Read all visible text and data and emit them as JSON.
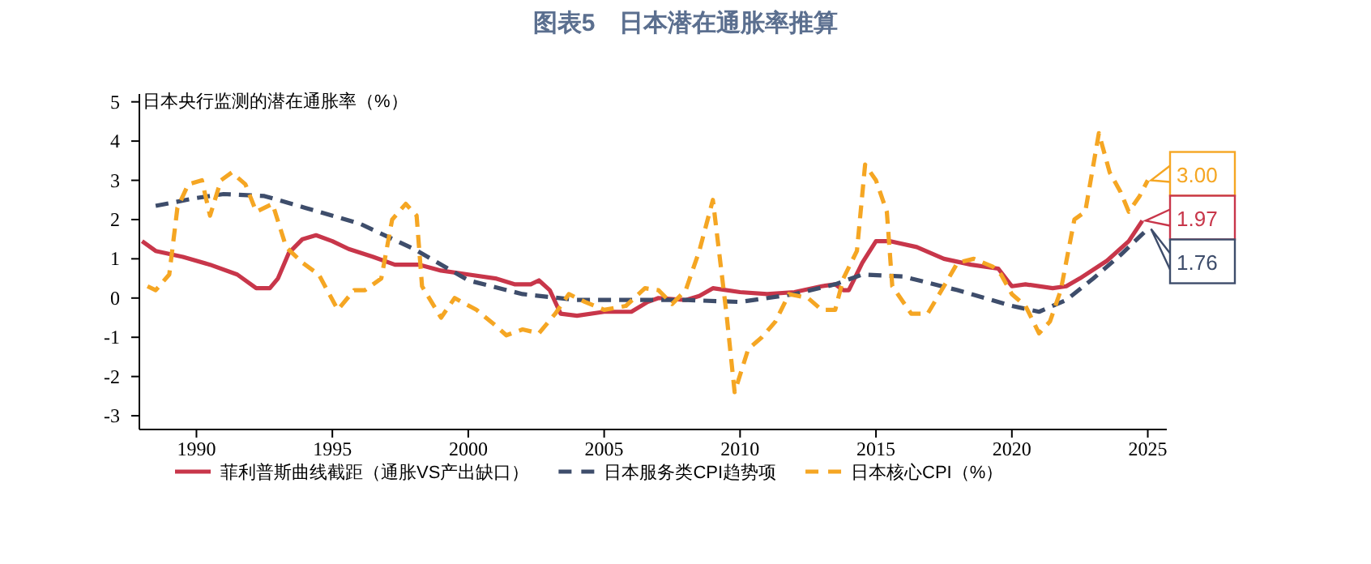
{
  "chart_data": {
    "type": "line",
    "title": "图表5　日本潜在通胀率推算",
    "ylabel": "日本央行监测的潜在通胀率（%）",
    "xlim": [
      1987.9,
      2025.7
    ],
    "ylim": [
      -3.35,
      5.2
    ],
    "xticks": [
      1990,
      1995,
      2000,
      2005,
      2010,
      2015,
      2020,
      2025
    ],
    "yticks": [
      -3,
      -2,
      -1,
      0,
      1,
      2,
      3,
      4,
      5
    ],
    "grid": false,
    "legend": "bottom",
    "series": [
      {
        "name": "菲利普斯曲线截距（通胀VS产出缺口）",
        "color": "#c8364a",
        "line_style": "solid",
        "x": [
          1988.0,
          1988.5,
          1989.5,
          1990.5,
          1991.5,
          1992.2,
          1992.7,
          1993.0,
          1993.4,
          1993.9,
          1994.4,
          1995.0,
          1995.6,
          1996.5,
          1997.3,
          1998.2,
          1999.0,
          2000.0,
          2001.0,
          2001.7,
          2002.3,
          2002.6,
          2003.0,
          2003.4,
          2004.0,
          2005.0,
          2006.0,
          2006.6,
          2007.0,
          2008.0,
          2008.5,
          2009.0,
          2010.0,
          2011.0,
          2012.0,
          2013.0,
          2013.5,
          2013.8,
          2014.0,
          2014.5,
          2015.0,
          2015.5,
          2016.5,
          2017.5,
          2018.5,
          2019.5,
          2020.0,
          2020.5,
          2021.5,
          2022.0,
          2022.5,
          2023.5,
          2024.3,
          2024.8
        ],
        "values": [
          1.45,
          1.2,
          1.05,
          0.85,
          0.6,
          0.25,
          0.25,
          0.5,
          1.15,
          1.5,
          1.6,
          1.45,
          1.25,
          1.05,
          0.85,
          0.85,
          0.7,
          0.6,
          0.5,
          0.35,
          0.35,
          0.45,
          0.2,
          -0.4,
          -0.45,
          -0.35,
          -0.35,
          -0.1,
          0,
          -0.05,
          0.05,
          0.25,
          0.15,
          0.1,
          0.15,
          0.3,
          0.35,
          0.2,
          0.2,
          0.9,
          1.45,
          1.45,
          1.3,
          1.0,
          0.85,
          0.75,
          0.3,
          0.35,
          0.25,
          0.3,
          0.5,
          0.95,
          1.45,
          1.97
        ],
        "value_labels": [
          null,
          null,
          null,
          null,
          null,
          null,
          null,
          null,
          null,
          null,
          null,
          null,
          null,
          null,
          null,
          null,
          null,
          null,
          null,
          null,
          null,
          null,
          null,
          null,
          null,
          null,
          null,
          null,
          null,
          null,
          null,
          null,
          null,
          null,
          null,
          null,
          null,
          null,
          null,
          null,
          null,
          null,
          null,
          null,
          null,
          null,
          null,
          null,
          null,
          null,
          null,
          null,
          null,
          "1.97"
        ]
      },
      {
        "name": "日本服务类CPI趋势项",
        "color": "#3e4d6b",
        "line_style": "dashed",
        "x": [
          1988.5,
          1990,
          1991,
          1992.5,
          1994,
          1996,
          1998,
          2000,
          2002,
          2004,
          2006,
          2008,
          2010,
          2012,
          2013.5,
          2014.5,
          2016,
          2018,
          2020,
          2021,
          2022,
          2023,
          2024,
          2025
        ],
        "values": [
          2.35,
          2.55,
          2.65,
          2.6,
          2.3,
          1.9,
          1.25,
          0.45,
          0.1,
          -0.05,
          -0.05,
          -0.05,
          -0.1,
          0.1,
          0.35,
          0.6,
          0.55,
          0.2,
          -0.2,
          -0.35,
          -0.05,
          0.5,
          1.1,
          1.76
        ],
        "value_labels": [
          null,
          null,
          null,
          null,
          null,
          null,
          null,
          null,
          null,
          null,
          null,
          null,
          null,
          null,
          null,
          null,
          null,
          null,
          null,
          null,
          null,
          null,
          null,
          "1.76"
        ]
      },
      {
        "name": "日本核心CPI（%）",
        "color": "#f5a623",
        "line_style": "dashed",
        "x": [
          1988.2,
          1988.5,
          1989.0,
          1989.3,
          1989.7,
          1990.2,
          1990.5,
          1990.9,
          1991.3,
          1991.8,
          1992.2,
          1992.8,
          1993.3,
          1993.9,
          1994.5,
          1995.2,
          1995.8,
          1996.2,
          1996.8,
          1997.2,
          1997.7,
          1998.1,
          1998.3,
          1999.0,
          1999.5,
          2000.3,
          2001.0,
          2001.4,
          2002.0,
          2002.6,
          2003.2,
          2003.7,
          2004.3,
          2005.0,
          2005.8,
          2006.5,
          2007.0,
          2007.5,
          2008.0,
          2008.5,
          2009.0,
          2009.5,
          2009.8,
          2010.3,
          2010.8,
          2011.3,
          2011.8,
          2012.5,
          2013.0,
          2013.5,
          2013.8,
          2014.3,
          2014.6,
          2015.0,
          2015.4,
          2015.6,
          2016.3,
          2016.9,
          2017.5,
          2018.0,
          2018.6,
          2019.3,
          2019.6,
          2020.0,
          2020.5,
          2021.0,
          2021.4,
          2021.8,
          2022.3,
          2022.7,
          2023.2,
          2023.6,
          2024.0,
          2024.3,
          2024.7,
          2025.0
        ],
        "values": [
          0.3,
          0.2,
          0.6,
          2.3,
          2.9,
          3.0,
          2.1,
          3.0,
          3.2,
          2.9,
          2.2,
          2.4,
          1.3,
          0.9,
          0.6,
          -0.3,
          0.2,
          0.2,
          0.5,
          2.0,
          2.4,
          2.1,
          0.3,
          -0.5,
          0.0,
          -0.3,
          -0.7,
          -0.95,
          -0.8,
          -0.9,
          -0.4,
          0.1,
          -0.1,
          -0.3,
          -0.2,
          0.25,
          0.2,
          -0.15,
          0.2,
          1.2,
          2.5,
          -0.4,
          -2.4,
          -1.3,
          -1.0,
          -0.6,
          0.1,
          0.0,
          -0.3,
          -0.3,
          0.5,
          1.2,
          3.4,
          3.0,
          2.2,
          0.3,
          -0.4,
          -0.4,
          0.3,
          0.9,
          1.0,
          0.8,
          0.6,
          0.1,
          -0.2,
          -0.9,
          -0.6,
          0.2,
          2.0,
          2.2,
          4.2,
          3.2,
          2.7,
          2.2,
          2.6,
          3.0
        ],
        "value_labels": [
          null,
          null,
          null,
          null,
          null,
          null,
          null,
          null,
          null,
          null,
          null,
          null,
          null,
          null,
          null,
          null,
          null,
          null,
          null,
          null,
          null,
          null,
          null,
          null,
          null,
          null,
          null,
          null,
          null,
          null,
          null,
          null,
          null,
          null,
          null,
          null,
          null,
          null,
          null,
          null,
          null,
          null,
          null,
          null,
          null,
          null,
          null,
          null,
          null,
          null,
          null,
          null,
          null,
          null,
          null,
          null,
          null,
          null,
          null,
          null,
          null,
          null,
          null,
          null,
          null,
          null,
          null,
          null,
          null,
          null,
          null,
          null,
          null,
          null,
          null,
          "3.00"
        ]
      }
    ]
  }
}
